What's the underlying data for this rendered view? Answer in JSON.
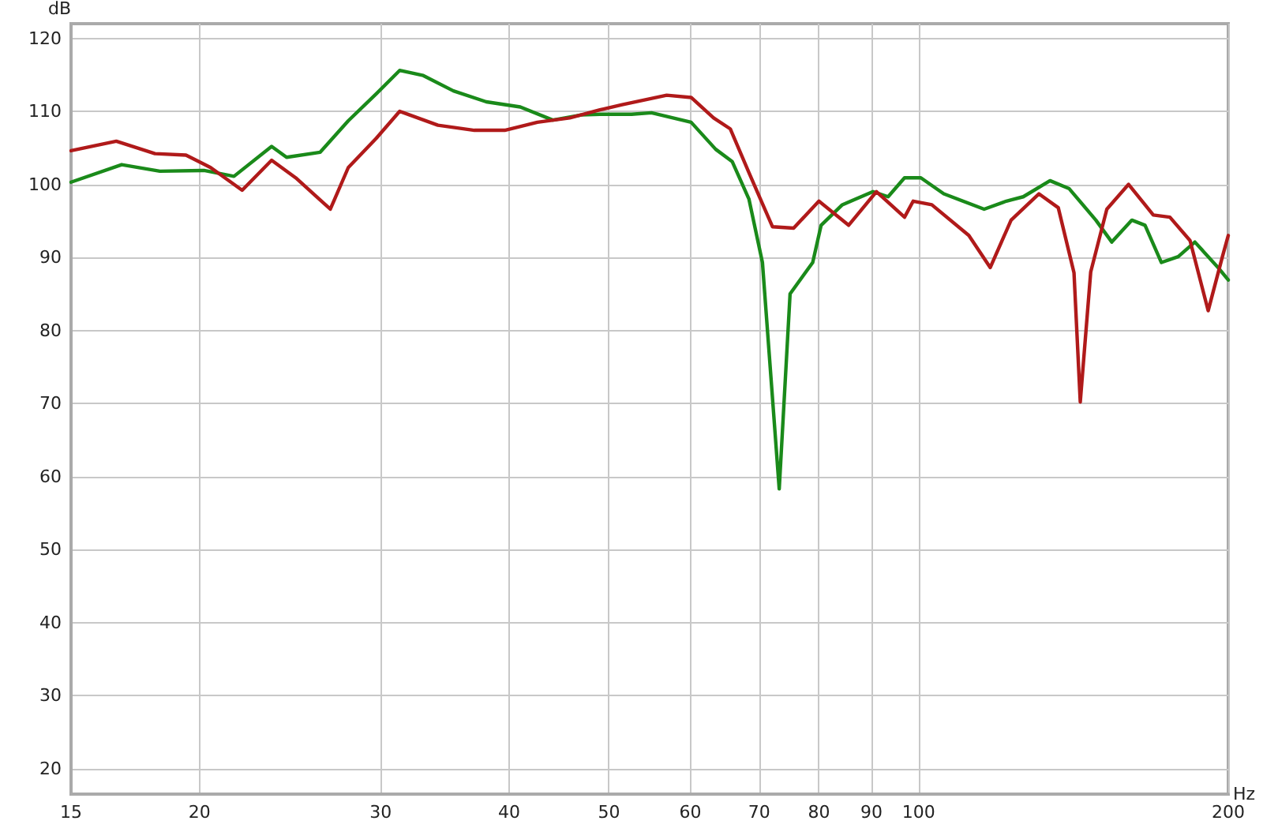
{
  "chart_data": {
    "type": "line",
    "xlabel": "Hz",
    "ylabel": "dB",
    "log": "x",
    "grid": true,
    "marker": "none",
    "line_style": "solid",
    "xlim": [
      15,
      200
    ],
    "xticks": [
      15,
      20,
      30,
      40,
      50,
      60,
      70,
      80,
      90,
      100,
      200
    ],
    "ylim": [
      16.5,
      122
    ],
    "yticks": [
      20,
      30,
      40,
      50,
      60,
      70,
      80,
      90,
      100,
      110,
      120
    ],
    "series": [
      {
        "color": "#1a8a1a",
        "x": [
          15,
          16.8,
          18.3,
          20.2,
          21.6,
          23.5,
          24.3,
          26.2,
          27.9,
          29.7,
          31.3,
          33,
          35.3,
          38,
          41,
          44.1,
          47,
          49,
          52.6,
          55,
          60.1,
          63.5,
          65.9,
          68.4,
          70.5,
          73.2,
          75,
          78.9,
          80.4,
          84.3,
          90.3,
          93.4,
          96.9,
          100.5,
          105.8,
          115.8,
          121.7,
          126.4,
          134.2,
          140.1,
          148.7,
          154.1,
          161.2,
          166,
          172.2,
          178.8,
          185.6,
          195.5,
          200
        ],
        "values": [
          100.3,
          102.7,
          101.8,
          101.9,
          101.1,
          105.2,
          103.7,
          104.4,
          108.7,
          112.4,
          115.6,
          114.9,
          112.8,
          111.3,
          110.6,
          108.8,
          109.5,
          109.6,
          109.6,
          109.8,
          108.5,
          104.8,
          103.1,
          98,
          89.3,
          58.3,
          85,
          89.3,
          94.4,
          97.2,
          99,
          98.3,
          100.9,
          100.9,
          98.7,
          96.6,
          97.7,
          98.3,
          100.5,
          99.4,
          95.1,
          92.1,
          95.1,
          94.4,
          89.3,
          90.1,
          92.1,
          88.6,
          86.9
        ]
      },
      {
        "color": "#b01a1a",
        "x": [
          15,
          16.6,
          18.1,
          19.4,
          20.5,
          22,
          23.5,
          24.8,
          26.8,
          27.9,
          29.7,
          31.3,
          34.1,
          37,
          39.6,
          42.6,
          45.8,
          49,
          51.5,
          56.9,
          60.1,
          63.2,
          65.6,
          68.4,
          72.1,
          75.6,
          80,
          85.5,
          91,
          96.9,
          98.8,
          103,
          111.9,
          117.4,
          123,
          130.9,
          136.7,
          141.6,
          143.6,
          147,
          152.4,
          160,
          169.1,
          175.5,
          183.6,
          191.2,
          197.4,
          200
        ],
        "values": [
          104.6,
          105.9,
          104.2,
          104,
          102.3,
          99.2,
          103.3,
          100.9,
          96.6,
          102.3,
          106.3,
          110,
          108.1,
          107.4,
          107.4,
          108.5,
          109.1,
          110.2,
          110.9,
          112.2,
          111.9,
          109.1,
          107.6,
          101.6,
          94.2,
          94,
          97.7,
          94.4,
          99,
          95.5,
          97.7,
          97.2,
          93,
          88.6,
          95.1,
          98.7,
          96.8,
          87.9,
          70.2,
          88,
          96.6,
          100,
          95.8,
          95.5,
          92.3,
          82.7,
          90.1,
          93
        ]
      }
    ]
  }
}
